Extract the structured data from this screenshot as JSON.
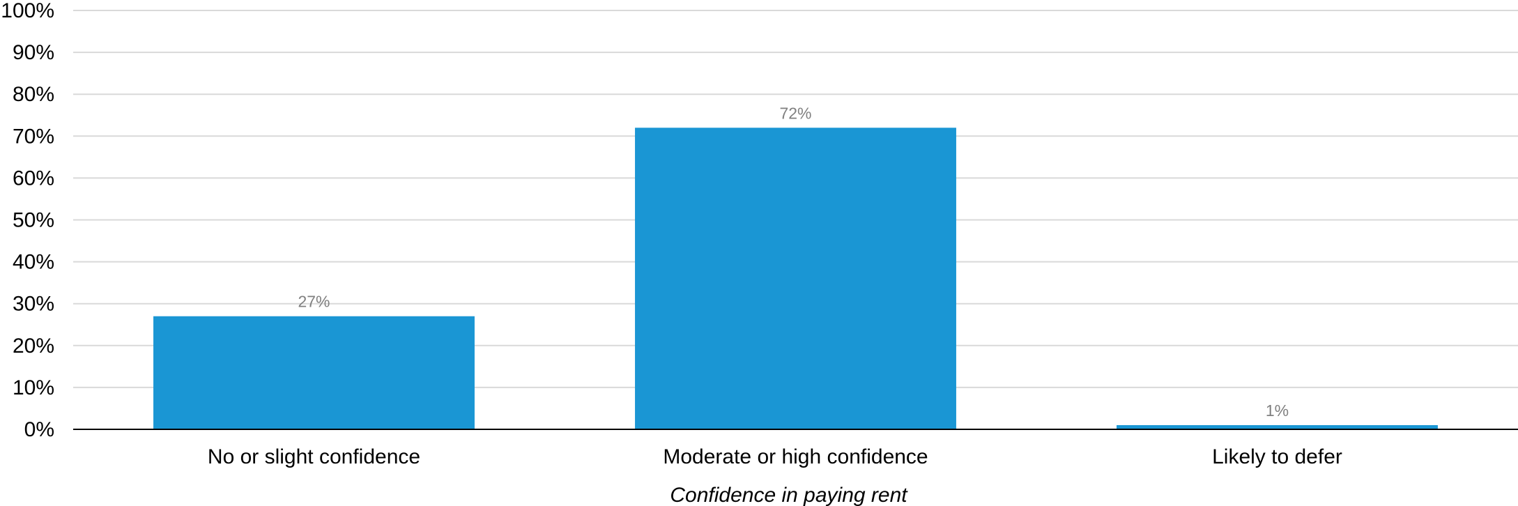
{
  "chart_data": {
    "type": "bar",
    "title": "",
    "xlabel": "Confidence in paying rent",
    "ylabel": "",
    "categories": [
      "No or slight confidence",
      "Moderate or high confidence",
      "Likely to defer"
    ],
    "values": [
      27,
      72,
      1
    ],
    "data_labels": [
      "27%",
      "72%",
      "1%"
    ],
    "ylim": [
      0,
      100
    ],
    "yticks": [
      0,
      10,
      20,
      30,
      40,
      50,
      60,
      70,
      80,
      90,
      100
    ],
    "ytick_labels": [
      "0%",
      "10%",
      "20%",
      "30%",
      "40%",
      "50%",
      "60%",
      "70%",
      "80%",
      "90%",
      "100%"
    ],
    "grid": true,
    "legend": "none",
    "colors": {
      "bar": "#1a96d4",
      "grid": "#d9d9d9",
      "data_label": "#7f7f7f"
    }
  }
}
